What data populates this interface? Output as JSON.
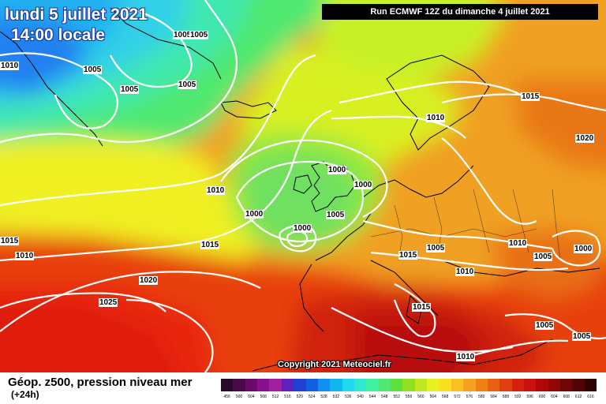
{
  "header": {
    "date": "lundi 5 juillet 2021",
    "time": "14:00 locale",
    "run": "Run ECMWF 12Z du dimanche 4 juillet 2021"
  },
  "copyright": "Copyright 2021 Meteociel.fr",
  "legend": {
    "title": "Géop. z500, pression niveau mer",
    "subtitle": "(+24h)",
    "scale_values": [
      "456",
      "500",
      "504",
      "508",
      "512",
      "516",
      "520",
      "524",
      "528",
      "532",
      "536",
      "540",
      "544",
      "548",
      "552",
      "556",
      "560",
      "564",
      "568",
      "572",
      "576",
      "580",
      "584",
      "588",
      "592",
      "596",
      "600",
      "604",
      "608",
      "612",
      "616"
    ],
    "scale_colors": [
      "#2a0a2a",
      "#4a0a4a",
      "#6a0a6a",
      "#8a108a",
      "#a020a0",
      "#6020c0",
      "#2040d0",
      "#1060e0",
      "#1090f0",
      "#10b8f0",
      "#20d8f0",
      "#30e8d0",
      "#40f0a0",
      "#50e870",
      "#60e040",
      "#90e020",
      "#c0e820",
      "#e8f020",
      "#f8e020",
      "#f8c020",
      "#f8a020",
      "#f08010",
      "#e86010",
      "#e04010",
      "#d82010",
      "#c81010",
      "#b00808",
      "#900808",
      "#700606",
      "#500404",
      "#300202"
    ]
  },
  "pressure_labels": [
    "1005",
    "1005",
    "1005",
    "1005",
    "1005",
    "1010",
    "1010",
    "1015",
    "1015",
    "1010",
    "1020",
    "1000",
    "1000",
    "1000",
    "1005",
    "1000",
    "1020",
    "1025",
    "1015",
    "1015",
    "1010",
    "1010",
    "1010",
    "1005",
    "1000",
    "1015",
    "1005",
    "1005",
    "1010",
    "1005"
  ]
}
